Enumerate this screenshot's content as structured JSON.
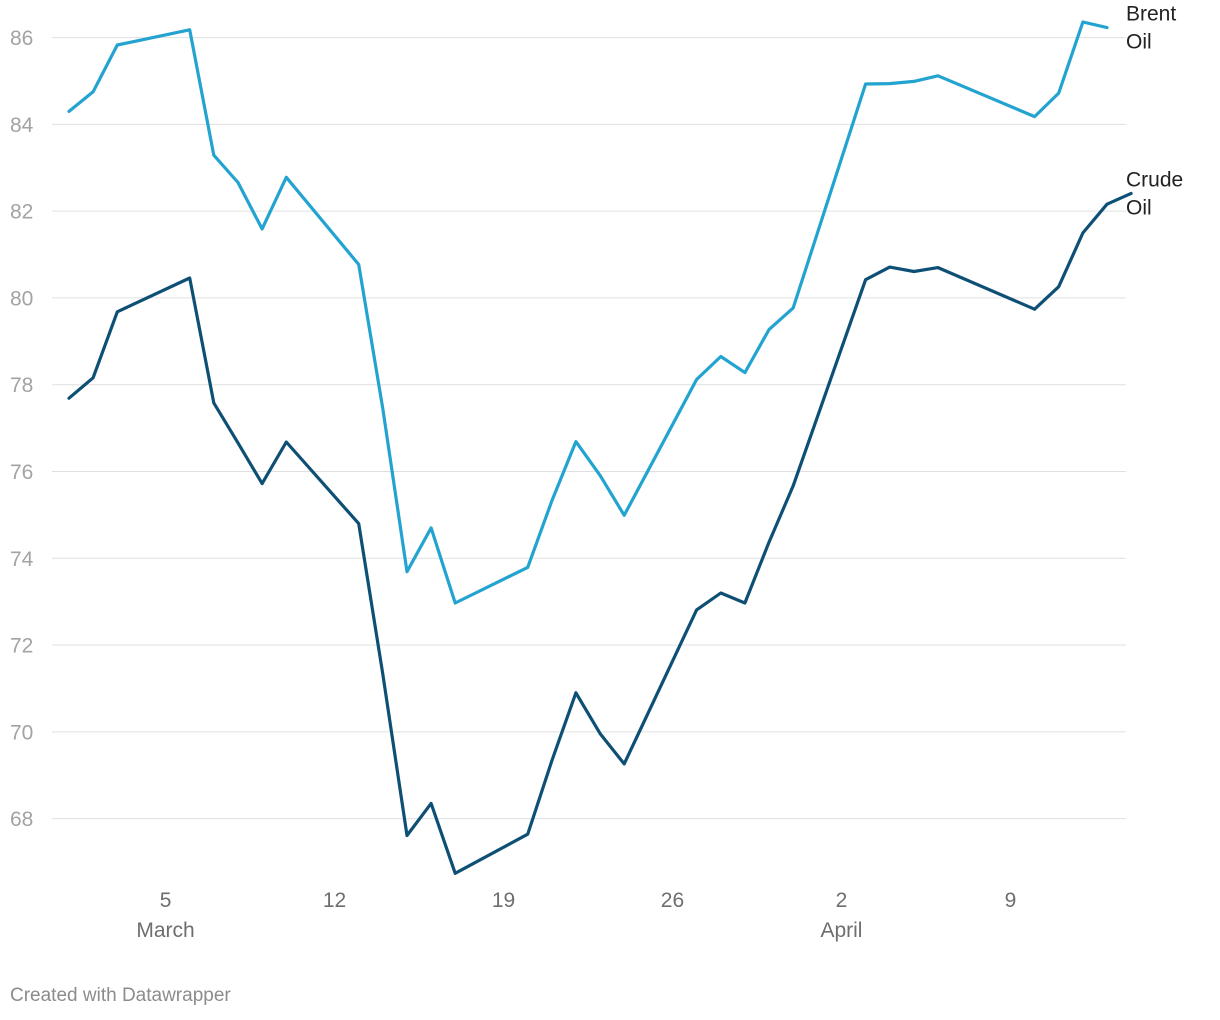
{
  "chart_data": {
    "type": "line",
    "ylim": [
      66.6,
      86.6
    ],
    "yticks": [
      68,
      70,
      72,
      74,
      76,
      78,
      80,
      82,
      84,
      86
    ],
    "xlim": [
      "2023-03-01",
      "2023-04-13"
    ],
    "xticks": [
      {
        "date": "2023-03-05",
        "label": "5",
        "sub": "March"
      },
      {
        "date": "2023-03-12",
        "label": "12",
        "sub": ""
      },
      {
        "date": "2023-03-19",
        "label": "19",
        "sub": ""
      },
      {
        "date": "2023-03-26",
        "label": "26",
        "sub": ""
      },
      {
        "date": "2023-04-02",
        "label": "2",
        "sub": "April"
      },
      {
        "date": "2023-04-09",
        "label": "9",
        "sub": ""
      }
    ],
    "grid": true,
    "legend": "inline-right",
    "series": [
      {
        "name": "Brent Oil",
        "label_lines": [
          "Brent",
          "Oil"
        ],
        "color": "#23a3d0",
        "points": [
          [
            "2023-03-01",
            84.3
          ],
          [
            "2023-03-02",
            84.75
          ],
          [
            "2023-03-03",
            85.83
          ],
          [
            "2023-03-06",
            86.18
          ],
          [
            "2023-03-07",
            83.29
          ],
          [
            "2023-03-08",
            82.66
          ],
          [
            "2023-03-09",
            81.59
          ],
          [
            "2023-03-10",
            82.78
          ],
          [
            "2023-03-13",
            80.77
          ],
          [
            "2023-03-14",
            77.45
          ],
          [
            "2023-03-15",
            73.69
          ],
          [
            "2023-03-16",
            74.7
          ],
          [
            "2023-03-17",
            72.97
          ],
          [
            "2023-03-20",
            73.79
          ],
          [
            "2023-03-21",
            75.32
          ],
          [
            "2023-03-22",
            76.69
          ],
          [
            "2023-03-23",
            75.91
          ],
          [
            "2023-03-24",
            74.99
          ],
          [
            "2023-03-27",
            78.12
          ],
          [
            "2023-03-28",
            78.65
          ],
          [
            "2023-03-29",
            78.28
          ],
          [
            "2023-03-30",
            79.27
          ],
          [
            "2023-03-31",
            79.77
          ],
          [
            "2023-04-03",
            84.93
          ],
          [
            "2023-04-04",
            84.94
          ],
          [
            "2023-04-05",
            84.99
          ],
          [
            "2023-04-06",
            85.12
          ],
          [
            "2023-04-10",
            84.18
          ],
          [
            "2023-04-11",
            84.72
          ],
          [
            "2023-04-12",
            86.36
          ],
          [
            "2023-04-13",
            86.23
          ]
        ]
      },
      {
        "name": "Crude Oil",
        "label_lines": [
          "Crude",
          "Oil"
        ],
        "color": "#0e5075",
        "points": [
          [
            "2023-03-01",
            77.69
          ],
          [
            "2023-03-02",
            78.16
          ],
          [
            "2023-03-03",
            79.68
          ],
          [
            "2023-03-06",
            80.46
          ],
          [
            "2023-03-07",
            77.58
          ],
          [
            "2023-03-08",
            76.66
          ],
          [
            "2023-03-09",
            75.72
          ],
          [
            "2023-03-10",
            76.68
          ],
          [
            "2023-03-13",
            74.8
          ],
          [
            "2023-03-14",
            71.33
          ],
          [
            "2023-03-15",
            67.61
          ],
          [
            "2023-03-16",
            68.35
          ],
          [
            "2023-03-17",
            66.74
          ],
          [
            "2023-03-20",
            67.64
          ],
          [
            "2023-03-21",
            69.33
          ],
          [
            "2023-03-22",
            70.9
          ],
          [
            "2023-03-23",
            69.96
          ],
          [
            "2023-03-24",
            69.26
          ],
          [
            "2023-03-27",
            72.81
          ],
          [
            "2023-03-28",
            73.2
          ],
          [
            "2023-03-29",
            72.97
          ],
          [
            "2023-03-30",
            74.37
          ],
          [
            "2023-03-31",
            75.67
          ],
          [
            "2023-04-03",
            80.42
          ],
          [
            "2023-04-04",
            80.71
          ],
          [
            "2023-04-05",
            80.61
          ],
          [
            "2023-04-06",
            80.7
          ],
          [
            "2023-04-10",
            79.74
          ],
          [
            "2023-04-11",
            80.26
          ],
          [
            "2023-04-12",
            81.5
          ],
          [
            "2023-04-13",
            82.16
          ],
          [
            "2023-04-14",
            82.41
          ]
        ]
      }
    ]
  },
  "footer": {
    "credit": "Created with Datawrapper"
  }
}
